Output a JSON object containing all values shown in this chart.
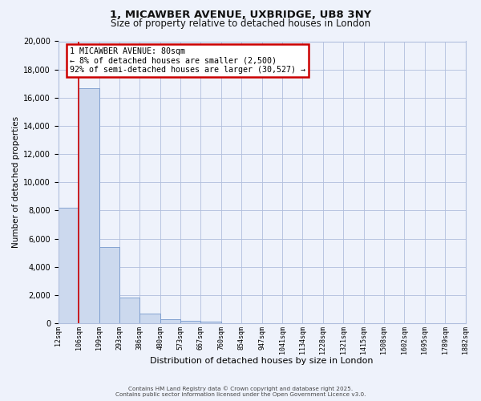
{
  "title_line1": "1, MICAWBER AVENUE, UXBRIDGE, UB8 3NY",
  "title_line2": "Size of property relative to detached houses in London",
  "xlabel": "Distribution of detached houses by size in London",
  "ylabel": "Number of detached properties",
  "bar_values": [
    8200,
    16700,
    5400,
    1800,
    700,
    300,
    150,
    100,
    0,
    0,
    0,
    0,
    0,
    0,
    0,
    0,
    0,
    0,
    0,
    0
  ],
  "bar_labels": [
    "12sqm",
    "106sqm",
    "199sqm",
    "293sqm",
    "386sqm",
    "480sqm",
    "573sqm",
    "667sqm",
    "760sqm",
    "854sqm",
    "947sqm",
    "1041sqm",
    "1134sqm",
    "1228sqm",
    "1321sqm",
    "1415sqm",
    "1508sqm",
    "1602sqm",
    "1695sqm",
    "1789sqm",
    "1882sqm"
  ],
  "bar_color": "#ccd9ee",
  "bar_edge_color": "#7799cc",
  "background_color": "#eef2fb",
  "grid_color": "#b0bedd",
  "red_line_x": 1,
  "annotation_title": "1 MICAWBER AVENUE: 80sqm",
  "annotation_line2": "← 8% of detached houses are smaller (2,500)",
  "annotation_line3": "92% of semi-detached houses are larger (30,527) →",
  "annotation_box_facecolor": "#ffffff",
  "annotation_edge_color": "#cc0000",
  "ylim": [
    0,
    20000
  ],
  "yticks": [
    0,
    2000,
    4000,
    6000,
    8000,
    10000,
    12000,
    14000,
    16000,
    18000,
    20000
  ],
  "footer_line1": "Contains HM Land Registry data © Crown copyright and database right 2025.",
  "footer_line2": "Contains public sector information licensed under the Open Government Licence v3.0."
}
